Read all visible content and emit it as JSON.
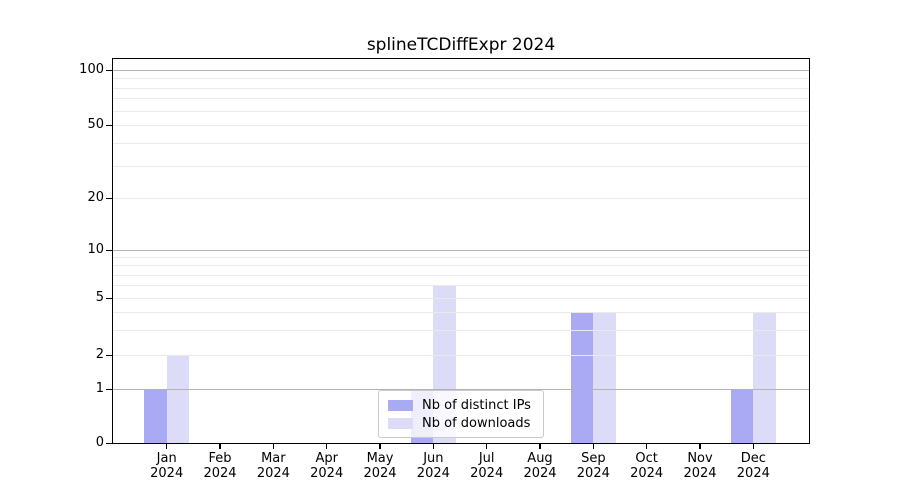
{
  "chart_data": {
    "type": "bar",
    "title": "splineTCDiffExpr 2024",
    "categories": [
      "Jan 2024",
      "Feb 2024",
      "Mar 2024",
      "Apr 2024",
      "May 2024",
      "Jun 2024",
      "Jul 2024",
      "Aug 2024",
      "Sep 2024",
      "Oct 2024",
      "Nov 2024",
      "Dec 2024"
    ],
    "series": [
      {
        "name": "Nb of distinct IPs",
        "color": "#a9a9f4",
        "values": [
          1,
          0,
          0,
          0,
          0,
          1,
          0,
          0,
          4,
          0,
          0,
          1
        ]
      },
      {
        "name": "Nb of downloads",
        "color": "#dcdcf8",
        "values": [
          2,
          0,
          0,
          0,
          0,
          6,
          0,
          0,
          4,
          0,
          0,
          4
        ]
      }
    ],
    "y_axis": {
      "scale": "log-like",
      "tick_values": [
        100,
        50,
        20,
        10,
        5,
        2,
        1,
        0
      ],
      "major_gridlines": [
        1,
        10,
        100
      ],
      "minor_gridlines": [
        2,
        3,
        4,
        5,
        6,
        7,
        8,
        9,
        20,
        30,
        40,
        50,
        60,
        70,
        80,
        90
      ]
    },
    "legend": {
      "position": "bottom-center",
      "entries": [
        "Nb of distinct IPs",
        "Nb of downloads"
      ]
    },
    "colors": {
      "distinct_ips_bar": "#a9a9f4",
      "downloads_bar": "#dcdcf8",
      "major_grid": "#b3b3b3",
      "minor_grid": "#eaeaea",
      "axis_frame": "#000000",
      "legend_border": "#c9c9c9"
    }
  }
}
